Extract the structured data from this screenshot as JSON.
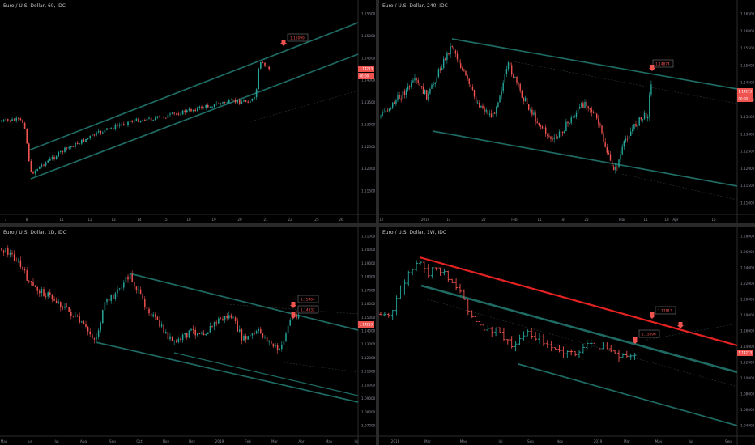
{
  "colors": {
    "background": "#000000",
    "channel": "#1f6b64",
    "candle_up": "#26a69a",
    "candle_down": "#ef5350",
    "price_tag": "#ef5350",
    "resistance": "#e52222",
    "axis_text": "#8a8e98"
  },
  "panels": [
    {
      "title": "Euro / U.S. Dollar, 60, IDC",
      "price_ticks": [
        "1.15500",
        "1.15000",
        "1.14500",
        "1.14000",
        "1.13500",
        "1.13000",
        "1.12500",
        "1.12000",
        "1.11500"
      ],
      "date_ticks": [
        "7",
        "8",
        "11",
        "12",
        "13",
        "14",
        "15",
        "18",
        "19",
        "20",
        "21",
        "22",
        "25",
        "26"
      ],
      "price_tag": "1.14213",
      "price_tag2": "00:00",
      "annotations": [
        "1.15099"
      ]
    },
    {
      "title": "Euro / U.S. Dollar, 240, IDC",
      "price_ticks": [
        "1.16500",
        "1.16000",
        "1.15500",
        "1.15000",
        "1.14500",
        "1.14000",
        "1.13500",
        "1.13000",
        "1.12500",
        "1.12000",
        "1.11500",
        "1.11000"
      ],
      "date_ticks": [
        "17",
        "2019",
        "14",
        "22",
        "Feb",
        "11",
        "18",
        "25",
        "Mar",
        "11",
        "18",
        "Apr",
        "15"
      ],
      "price_tag": "1.14213",
      "price_tag2": "00:00",
      "annotations": [
        "1.14874"
      ]
    },
    {
      "title": "Euro / U.S. Dollar, 1D, IDC",
      "price_ticks": [
        "1.21000",
        "1.20000",
        "1.19000",
        "1.18000",
        "1.17000",
        "1.16000",
        "1.15000",
        "1.14000",
        "1.13000",
        "1.12000",
        "1.11000",
        "1.10000",
        "1.09000",
        "1.08000",
        "1.07000"
      ],
      "date_ticks": [
        "May",
        "Jun",
        "Jul",
        "Aug",
        "Sep",
        "Oct",
        "Nov",
        "Dec",
        "2019",
        "Feb",
        "Mar",
        "Apr",
        "May",
        "Jul"
      ],
      "price_tag": "1.14213",
      "annotations": [
        "1.15404",
        "1.14832"
      ]
    },
    {
      "title": "Euro / U.S. Dollar, 1W, IDC",
      "price_ticks": [
        "1.28000",
        "1.26000",
        "1.24000",
        "1.22000",
        "1.20000",
        "1.18000",
        "1.16000",
        "1.14000",
        "1.12000",
        "1.10000",
        "1.08000",
        "1.06000",
        "1.04000"
      ],
      "date_ticks": [
        "2018",
        "Mar",
        "May",
        "Jul",
        "Sep",
        "Nov",
        "2019",
        "Mar",
        "May",
        "Jul",
        "Sep"
      ],
      "price_tag": "1.14213",
      "annotations": [
        "1.17813",
        "1.15096"
      ]
    }
  ]
}
